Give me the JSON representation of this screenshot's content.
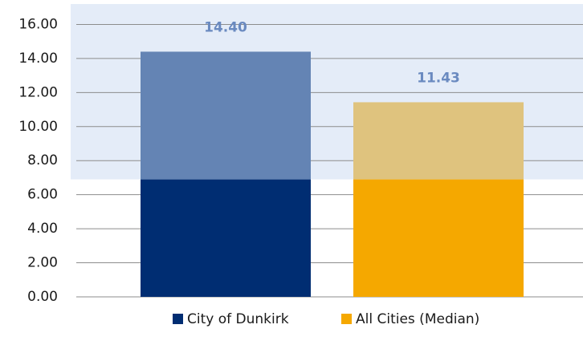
{
  "chart_data": {
    "type": "bar",
    "categories": [
      "City of Dunkirk",
      "All Cities (Median)"
    ],
    "values": [
      14.4,
      11.43
    ],
    "value_labels": [
      "14.40",
      "11.43"
    ],
    "colors": [
      "#002d72",
      "#f5a800"
    ],
    "band_colors": [
      "#6484b4",
      "#dfc37e"
    ],
    "band": {
      "from": 6.9,
      "to": 17.2,
      "color": "#e4ecf8"
    },
    "ylim": [
      0,
      17.2
    ],
    "yticks": [
      {
        "value": 0,
        "label": "0.00"
      },
      {
        "value": 2,
        "label": "2.00"
      },
      {
        "value": 4,
        "label": "4.00"
      },
      {
        "value": 6,
        "label": "6.00"
      },
      {
        "value": 8,
        "label": "8.00"
      },
      {
        "value": 10,
        "label": "10.00"
      },
      {
        "value": 12,
        "label": "12.00"
      },
      {
        "value": 14,
        "label": "14.00"
      },
      {
        "value": 16,
        "label": "16.00"
      }
    ],
    "grid": true
  }
}
